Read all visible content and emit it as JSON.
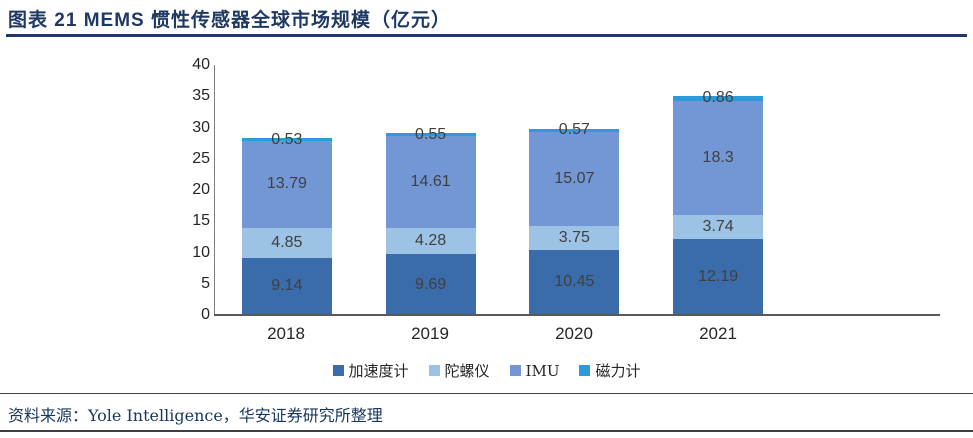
{
  "title": "图表 21 MEMS 惯性传感器全球市场规模（亿元）",
  "source": "资料来源：Yole Intelligence，华安证券研究所整理",
  "colors": {
    "accent": "#1F3864",
    "axis": "#595959",
    "data_label": "#404040"
  },
  "chart_data": {
    "type": "bar",
    "stacked": true,
    "title": "图表 21 MEMS 惯性传感器全球市场规模（亿元）",
    "categories": [
      "2018",
      "2019",
      "2020",
      "2021"
    ],
    "series": [
      {
        "name": "加速度计",
        "color": "#3A6BAA",
        "values": [
          9.14,
          9.69,
          10.45,
          12.19
        ]
      },
      {
        "name": "陀螺仪",
        "color": "#9CC2E5",
        "values": [
          4.85,
          4.28,
          3.75,
          3.74
        ]
      },
      {
        "name": "IMU",
        "color": "#7297D4",
        "values": [
          13.79,
          14.61,
          15.07,
          18.3
        ]
      },
      {
        "name": "磁力计",
        "color": "#2D9BD9",
        "values": [
          0.53,
          0.55,
          0.57,
          0.86
        ]
      }
    ],
    "ylim": [
      0,
      40
    ],
    "ytick_step": 5,
    "yticks": [
      0,
      5,
      10,
      15,
      20,
      25,
      30,
      35,
      40
    ],
    "legend_position": "bottom",
    "grid": false,
    "data_labels": true
  }
}
